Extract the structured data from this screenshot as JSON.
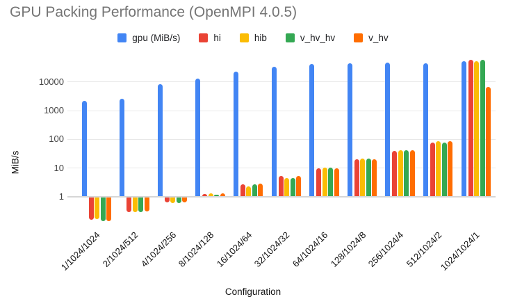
{
  "title": "GPU Packing Performance (OpenMPI 4.0.5)",
  "chart_data": {
    "type": "bar",
    "title": "GPU Packing Performance (OpenMPI 4.0.5)",
    "xlabel": "Configuration",
    "ylabel": "MiB/s",
    "y_scale": "log",
    "y_ticks": [
      1,
      10,
      100,
      1000,
      10000
    ],
    "ylim": [
      0.1,
      70000
    ],
    "grid": true,
    "legend_position": "top",
    "categories": [
      "1/1024/1024",
      "2/1024/512",
      "4/1024/256",
      "8/1024/128",
      "16/1024/64",
      "32/1024/32",
      "64/1024/16",
      "128/1024/8",
      "256/1024/4",
      "512/1024/2",
      "1024/1024/1"
    ],
    "series": [
      {
        "name": "gpu (MiB/s)",
        "color": "#4285F4",
        "values": [
          2100,
          2500,
          8000,
          12500,
          22500,
          32000,
          40000,
          43000,
          47000,
          44000,
          52000
        ]
      },
      {
        "name": "hi",
        "color": "#EA4335",
        "values": [
          0.16,
          0.3,
          0.65,
          1.2,
          2.6,
          5.1,
          9.5,
          20,
          38,
          77,
          56000
        ]
      },
      {
        "name": "hib",
        "color": "#FBBC04",
        "values": [
          0.17,
          0.31,
          0.62,
          1.3,
          2.2,
          4.5,
          10,
          21,
          41,
          83,
          52000
        ]
      },
      {
        "name": "v_hv_hv",
        "color": "#34A853",
        "values": [
          0.15,
          0.3,
          0.62,
          1.15,
          2.6,
          4.5,
          10,
          21,
          41,
          75,
          56000
        ]
      },
      {
        "name": "v_hv",
        "color": "#FF6D01",
        "values": [
          0.15,
          0.32,
          0.65,
          1.25,
          2.8,
          5.3,
          9.8,
          20,
          40,
          83,
          6500
        ]
      }
    ]
  }
}
